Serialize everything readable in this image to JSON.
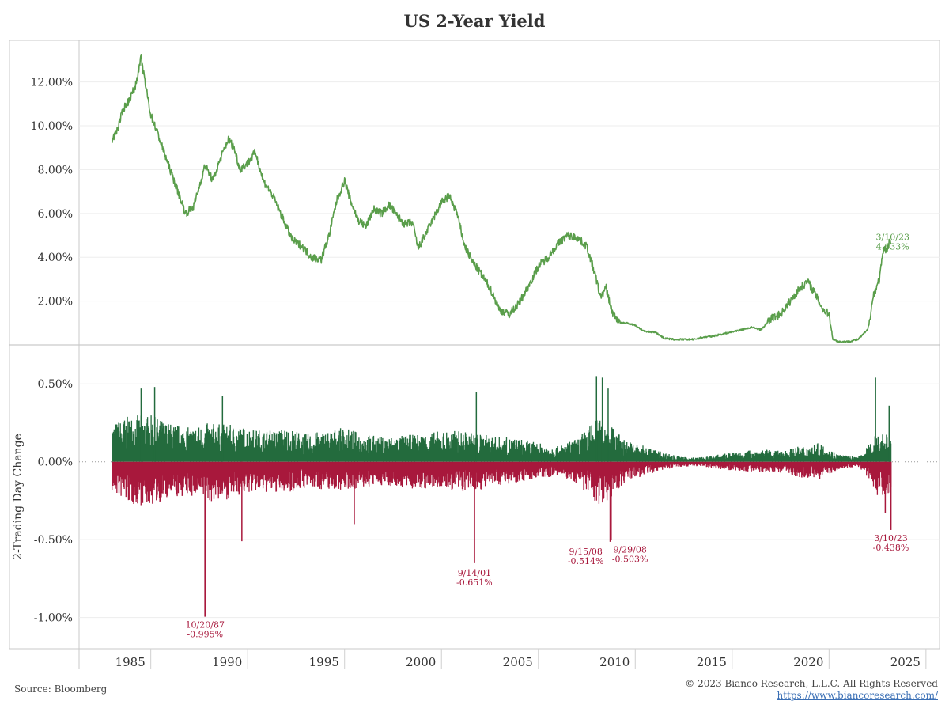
{
  "chart_data": [
    {
      "type": "line",
      "title": "US 2-Year Yield",
      "xlabel": "",
      "ylabel": "",
      "xlim": [
        1981.3,
        2025.7
      ],
      "ylim": [
        0,
        13.9
      ],
      "yticks": [
        {
          "v": 2,
          "label": "2.00%"
        },
        {
          "v": 4,
          "label": "4.00%"
        },
        {
          "v": 6,
          "label": "6.00%"
        },
        {
          "v": 8,
          "label": "8.00%"
        },
        {
          "v": 10,
          "label": "10.00%"
        },
        {
          "v": 12,
          "label": "12.00%"
        }
      ],
      "color": "#5a9e4b",
      "series": [
        {
          "name": "US 2-Year Yield",
          "x": [
            1983.0,
            1983.3,
            1983.6,
            1983.9,
            1984.2,
            1984.5,
            1984.7,
            1985.0,
            1985.3,
            1985.6,
            1986.0,
            1986.4,
            1986.8,
            1987.2,
            1987.5,
            1987.8,
            1988.2,
            1988.6,
            1989.0,
            1989.3,
            1989.6,
            1990.0,
            1990.4,
            1990.8,
            1991.3,
            1991.8,
            1992.3,
            1992.8,
            1993.3,
            1993.8,
            1994.2,
            1994.6,
            1995.0,
            1995.3,
            1995.7,
            1996.1,
            1996.5,
            1996.9,
            1997.3,
            1997.7,
            1998.1,
            1998.5,
            1998.8,
            1999.2,
            1999.6,
            2000.0,
            2000.4,
            2000.8,
            2001.2,
            2001.6,
            2002.0,
            2002.5,
            2003.0,
            2003.5,
            2004.0,
            2004.5,
            2005.0,
            2005.5,
            2006.0,
            2006.5,
            2007.0,
            2007.5,
            2007.9,
            2008.2,
            2008.5,
            2008.8,
            2009.2,
            2009.6,
            2010.0,
            2010.5,
            2011.0,
            2011.5,
            2012.0,
            2012.5,
            2013.0,
            2013.5,
            2014.0,
            2014.5,
            2015.0,
            2015.5,
            2016.0,
            2016.5,
            2017.0,
            2017.5,
            2018.0,
            2018.5,
            2018.9,
            2019.3,
            2019.7,
            2020.0,
            2020.2,
            2020.5,
            2021.0,
            2021.5,
            2022.0,
            2022.3,
            2022.6,
            2022.8,
            2023.0,
            2023.15,
            2023.2
          ],
          "y": [
            9.3,
            9.9,
            10.8,
            11.2,
            11.8,
            13.1,
            12.0,
            10.5,
            9.8,
            9.0,
            8.0,
            7.0,
            6.0,
            6.3,
            7.2,
            8.2,
            7.5,
            8.5,
            9.4,
            9.0,
            8.0,
            8.3,
            8.8,
            7.5,
            6.8,
            5.8,
            4.8,
            4.5,
            4.0,
            3.9,
            5.0,
            6.6,
            7.5,
            6.6,
            5.7,
            5.4,
            6.2,
            6.0,
            6.4,
            5.9,
            5.5,
            5.6,
            4.4,
            5.1,
            5.8,
            6.5,
            6.8,
            6.0,
            4.5,
            3.8,
            3.3,
            2.6,
            1.6,
            1.4,
            1.9,
            2.7,
            3.6,
            4.0,
            4.6,
            5.0,
            4.9,
            4.5,
            3.3,
            2.2,
            2.6,
            1.5,
            1.0,
            1.0,
            0.9,
            0.6,
            0.6,
            0.3,
            0.25,
            0.25,
            0.25,
            0.35,
            0.4,
            0.5,
            0.6,
            0.7,
            0.8,
            0.7,
            1.2,
            1.4,
            2.0,
            2.6,
            2.9,
            2.3,
            1.6,
            1.4,
            0.25,
            0.15,
            0.15,
            0.25,
            0.7,
            2.3,
            3.0,
            4.3,
            4.4,
            4.8,
            4.633
          ]
        }
      ],
      "annotation": {
        "date": "3/10/23",
        "value": "4.633%",
        "x": 2023.2,
        "y": 4.633
      }
    },
    {
      "type": "bar",
      "title": "",
      "xlabel": "",
      "ylabel": "2-Trading Day Change",
      "xlim": [
        1981.3,
        2025.7
      ],
      "ylim": [
        -1.2,
        0.75
      ],
      "yticks": [
        {
          "v": 0.5,
          "label": "0.50%"
        },
        {
          "v": 0,
          "label": "0.00%"
        },
        {
          "v": -0.5,
          "label": "-0.50%"
        },
        {
          "v": -1.0,
          "label": "-1.00%"
        }
      ],
      "xticks": [
        {
          "v": 1985,
          "label": "1985"
        },
        {
          "v": 1990,
          "label": "1990"
        },
        {
          "v": 1995,
          "label": "1995"
        },
        {
          "v": 2000,
          "label": "2000"
        },
        {
          "v": 2005,
          "label": "2005"
        },
        {
          "v": 2010,
          "label": "2010"
        },
        {
          "v": 2015,
          "label": "2015"
        },
        {
          "v": 2020,
          "label": "2020"
        },
        {
          "v": 2025,
          "label": "2025"
        }
      ],
      "positive_color": "#236b3d",
      "negative_color": "#a8183c",
      "envelope": {
        "x": [
          1983.0,
          1984.0,
          1985.0,
          1986.0,
          1987.0,
          1988.0,
          1989.0,
          1990.0,
          1991.0,
          1992.0,
          1993.0,
          1994.0,
          1995.0,
          1996.0,
          1997.0,
          1998.0,
          1999.0,
          2000.0,
          2001.0,
          2002.0,
          2003.0,
          2004.0,
          2005.0,
          2006.0,
          2007.0,
          2008.0,
          2008.7,
          2009.5,
          2010.5,
          2011.5,
          2012.5,
          2013.5,
          2014.5,
          2015.5,
          2016.5,
          2017.5,
          2018.5,
          2019.5,
          2020.5,
          2021.5,
          2022.0,
          2022.5,
          2023.2
        ],
        "pos": [
          0.25,
          0.3,
          0.3,
          0.25,
          0.22,
          0.25,
          0.24,
          0.22,
          0.2,
          0.22,
          0.18,
          0.2,
          0.22,
          0.18,
          0.16,
          0.17,
          0.18,
          0.2,
          0.2,
          0.18,
          0.16,
          0.15,
          0.12,
          0.1,
          0.15,
          0.28,
          0.24,
          0.14,
          0.1,
          0.06,
          0.03,
          0.03,
          0.05,
          0.07,
          0.08,
          0.07,
          0.1,
          0.12,
          0.05,
          0.03,
          0.1,
          0.2,
          0.18
        ],
        "neg": [
          0.2,
          0.28,
          0.28,
          0.24,
          0.22,
          0.26,
          0.24,
          0.2,
          0.2,
          0.2,
          0.17,
          0.18,
          0.18,
          0.17,
          0.15,
          0.17,
          0.18,
          0.17,
          0.2,
          0.18,
          0.15,
          0.13,
          0.11,
          0.09,
          0.14,
          0.28,
          0.24,
          0.13,
          0.09,
          0.05,
          0.03,
          0.03,
          0.05,
          0.06,
          0.07,
          0.07,
          0.1,
          0.11,
          0.05,
          0.03,
          0.1,
          0.22,
          0.2
        ]
      },
      "spikes": [
        {
          "x": 1984.5,
          "v": 0.47
        },
        {
          "x": 1985.2,
          "v": 0.48
        },
        {
          "x": 1988.7,
          "v": 0.42
        },
        {
          "x": 1989.7,
          "v": -0.51
        },
        {
          "x": 1995.5,
          "v": -0.4
        },
        {
          "x": 2001.8,
          "v": 0.45
        },
        {
          "x": 2008.0,
          "v": 0.55
        },
        {
          "x": 2008.3,
          "v": 0.54
        },
        {
          "x": 2008.6,
          "v": 0.47
        },
        {
          "x": 2022.4,
          "v": 0.54
        },
        {
          "x": 2022.9,
          "v": -0.33
        },
        {
          "x": 2023.1,
          "v": 0.36
        }
      ],
      "labeled_drops": [
        {
          "x": 1987.8,
          "v": -0.995,
          "date": "10/20/87",
          "value": "-0.995%"
        },
        {
          "x": 2001.7,
          "v": -0.651,
          "date": "9/14/01",
          "value": "-0.651%"
        },
        {
          "x": 2008.71,
          "v": -0.514,
          "date": "9/15/08",
          "value": "-0.514%"
        },
        {
          "x": 2008.75,
          "v": -0.503,
          "date": "9/29/08",
          "value": "-0.503%"
        },
        {
          "x": 2023.19,
          "v": -0.438,
          "date": "3/10/23",
          "value": "-0.438%"
        }
      ]
    }
  ],
  "footer": {
    "source": "Source: Bloomberg",
    "copyright": "© 2023 Bianco Research, L.L.C. All Rights Reserved",
    "url": "https://www.biancoresearch.com/"
  }
}
